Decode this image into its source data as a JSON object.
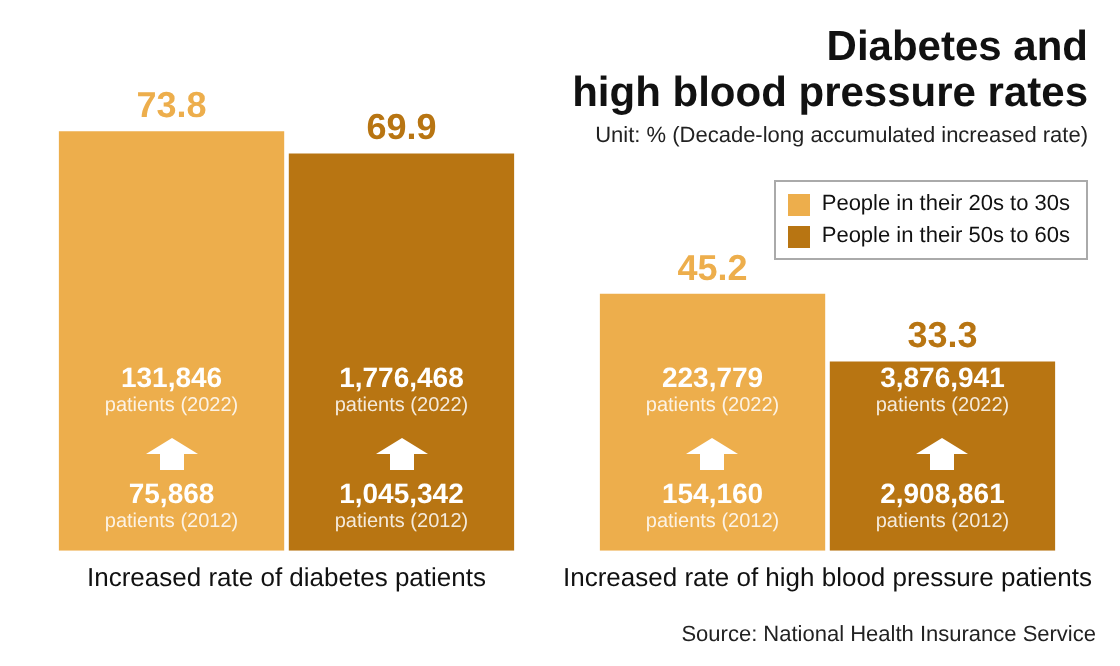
{
  "chart_data": {
    "type": "bar",
    "title": "Diabetes and\nhigh blood pressure rates",
    "subtitle": "Unit: % (Decade-long accumulated increased rate)",
    "categories": [
      "Increased rate of diabetes patients",
      "Increased rate of high blood pressure patients"
    ],
    "series": [
      {
        "name": "People in their 20s to 30s",
        "color": "#edae4c",
        "values": [
          73.8,
          45.2
        ]
      },
      {
        "name": "People in their 50s to 60s",
        "color": "#b87512",
        "values": [
          69.9,
          33.3
        ]
      }
    ],
    "data_labels": true,
    "legend": "top right",
    "grid": false,
    "annotations": [
      "131,846 patients (2022)",
      "75,868 patients (2012)",
      "223,779 patients (2022)",
      "154,160 patients (2012)",
      "1,776,468 patients (2022)",
      "1,045,342 patients (2012)",
      "3,876,941 patients (2022)",
      "2,908,861 patients (2012)",
      "Source: National Health Insurance Service"
    ]
  }
}
